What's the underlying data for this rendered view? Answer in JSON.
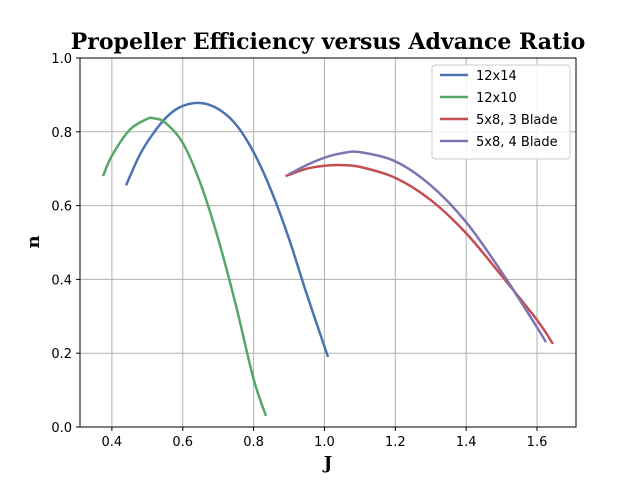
{
  "chart_data": {
    "type": "line",
    "title": "Propeller Efficiency versus Advance Ratio",
    "xlabel": "J",
    "ylabel": "n",
    "xlim": [
      0.31,
      1.71
    ],
    "ylim": [
      0.0,
      1.0
    ],
    "xticks": [
      0.4,
      0.6,
      0.8,
      1.0,
      1.2,
      1.4,
      1.6
    ],
    "xtick_labels": [
      "0.4",
      "0.6",
      "0.8",
      "1.0",
      "1.2",
      "1.4",
      "1.6"
    ],
    "yticks": [
      0.0,
      0.2,
      0.4,
      0.6,
      0.8,
      1.0
    ],
    "ytick_labels": [
      "0.0",
      "0.2",
      "0.4",
      "0.6",
      "0.8",
      "1.0"
    ],
    "grid": true,
    "legend_position": "top-right",
    "series": [
      {
        "name": "12x14",
        "color": "#4c72b0",
        "x": [
          0.44,
          0.48,
          0.52,
          0.56,
          0.6,
          0.65,
          0.7,
          0.75,
          0.8,
          0.85,
          0.9,
          0.95,
          1.01
        ],
        "y": [
          0.655,
          0.74,
          0.8,
          0.845,
          0.87,
          0.878,
          0.862,
          0.82,
          0.745,
          0.64,
          0.51,
          0.36,
          0.19
        ]
      },
      {
        "name": "12x10",
        "color": "#55a868",
        "x": [
          0.375,
          0.4,
          0.45,
          0.5,
          0.52,
          0.55,
          0.6,
          0.65,
          0.7,
          0.75,
          0.8,
          0.835
        ],
        "y": [
          0.68,
          0.735,
          0.805,
          0.835,
          0.836,
          0.825,
          0.77,
          0.66,
          0.51,
          0.33,
          0.13,
          0.03
        ]
      },
      {
        "name": "5x8, 3 Blade",
        "color": "#c44e52",
        "x": [
          0.89,
          0.95,
          1.0,
          1.04,
          1.1,
          1.2,
          1.3,
          1.4,
          1.5,
          1.6,
          1.645
        ],
        "y": [
          0.68,
          0.7,
          0.708,
          0.71,
          0.705,
          0.675,
          0.615,
          0.525,
          0.41,
          0.29,
          0.225
        ]
      },
      {
        "name": "5x8, 4 Blade",
        "color": "#8172b2",
        "x": [
          0.9,
          0.95,
          1.0,
          1.05,
          1.1,
          1.2,
          1.3,
          1.4,
          1.5,
          1.6,
          1.625
        ],
        "y": [
          0.685,
          0.71,
          0.73,
          0.742,
          0.745,
          0.72,
          0.655,
          0.555,
          0.42,
          0.27,
          0.23
        ]
      }
    ]
  }
}
